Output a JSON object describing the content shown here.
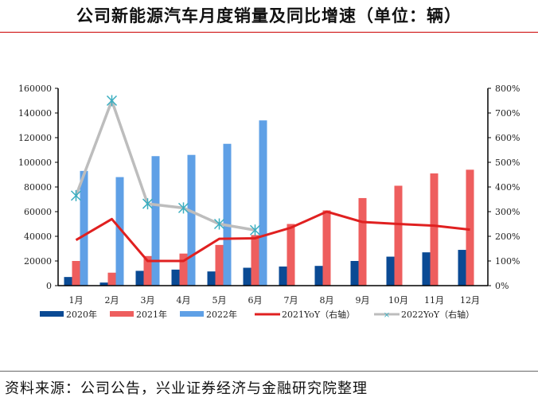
{
  "title": "公司新能源汽车月度销量及同比增速（单位：辆）",
  "source": "资料来源：公司公告，兴业证券经济与金融研究院整理",
  "chart_data": {
    "type": "bar+line",
    "categories": [
      "1月",
      "2月",
      "3月",
      "4月",
      "5月",
      "6月",
      "7月",
      "8月",
      "9月",
      "10月",
      "11月",
      "12月"
    ],
    "left_axis": {
      "range": [
        0,
        160000
      ],
      "ticks": [
        "0",
        "20000",
        "40000",
        "60000",
        "80000",
        "100000",
        "120000",
        "140000",
        "160000"
      ]
    },
    "right_axis": {
      "range": [
        0,
        800
      ],
      "unit": "%",
      "ticks": [
        "0%",
        "100%",
        "200%",
        "300%",
        "400%",
        "500%",
        "600%",
        "700%",
        "800%"
      ]
    },
    "bar_series": [
      {
        "name": "2020年",
        "color": "#0a4a94",
        "values": [
          7000,
          2500,
          12000,
          13000,
          11500,
          14500,
          15500,
          16000,
          20000,
          23500,
          27000,
          29000
        ]
      },
      {
        "name": "2021年",
        "color": "#ee5e5e",
        "values": [
          20000,
          10500,
          24000,
          26000,
          33000,
          41000,
          50000,
          61000,
          71000,
          81000,
          91000,
          94000
        ]
      },
      {
        "name": "2022年",
        "color": "#5fa0e6",
        "values": [
          93000,
          88000,
          105000,
          106000,
          115000,
          134000,
          null,
          null,
          null,
          null,
          null,
          null
        ]
      }
    ],
    "line_series": [
      {
        "name": "2021YoY（右轴）",
        "color": "#e02020",
        "values": [
          185,
          270,
          100,
          100,
          190,
          192,
          235,
          300,
          258,
          250,
          243,
          227
        ]
      },
      {
        "name": "2022YoY（右轴）",
        "color": "#bdbdbd",
        "marker_color": "#3aaec0",
        "values": [
          365,
          750,
          332,
          315,
          250,
          225,
          null,
          null,
          null,
          null,
          null,
          null
        ]
      }
    ],
    "legend": "bottom",
    "grid": false
  }
}
